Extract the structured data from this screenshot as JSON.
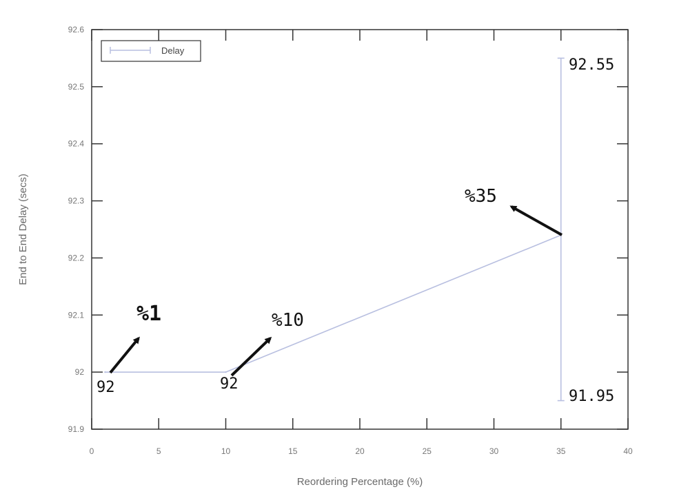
{
  "chart_data": {
    "type": "line",
    "xlabel": "Reordering Percentage (%)",
    "ylabel": "End to End Delay (secs)",
    "xlim": [
      0,
      40
    ],
    "ylim": [
      91.9,
      92.6
    ],
    "x_ticks": [
      "0",
      "5",
      "10",
      "15",
      "20",
      "25",
      "30",
      "35",
      "40"
    ],
    "y_ticks": [
      "91.9",
      "92",
      "92.1",
      "92.2",
      "92.3",
      "92.4",
      "92.5",
      "92.6"
    ],
    "grid": false,
    "legend_position": "top-left",
    "series": [
      {
        "name": "Delay",
        "x": [
          1,
          10,
          35
        ],
        "y": [
          92.0,
          92.0,
          92.24
        ],
        "error_bar": {
          "x": 35,
          "low": 91.95,
          "high": 92.55
        }
      }
    ],
    "annotations": [
      {
        "text": "%1",
        "x": 1,
        "y": 92.0
      },
      {
        "text": "%10",
        "x": 10,
        "y": 92.0
      },
      {
        "text": "%35",
        "x": 35,
        "y": 92.24
      },
      {
        "text": "92",
        "x": 1,
        "y": 92.0
      },
      {
        "text": "92",
        "x": 10,
        "y": 92.0
      },
      {
        "text": "92.55",
        "x": 35,
        "y": 92.55
      },
      {
        "text": "91.95",
        "x": 35,
        "y": 91.95
      }
    ]
  },
  "colors": {
    "series": "#b8bfe0",
    "axis": "#333333",
    "annotation": "#111111"
  }
}
